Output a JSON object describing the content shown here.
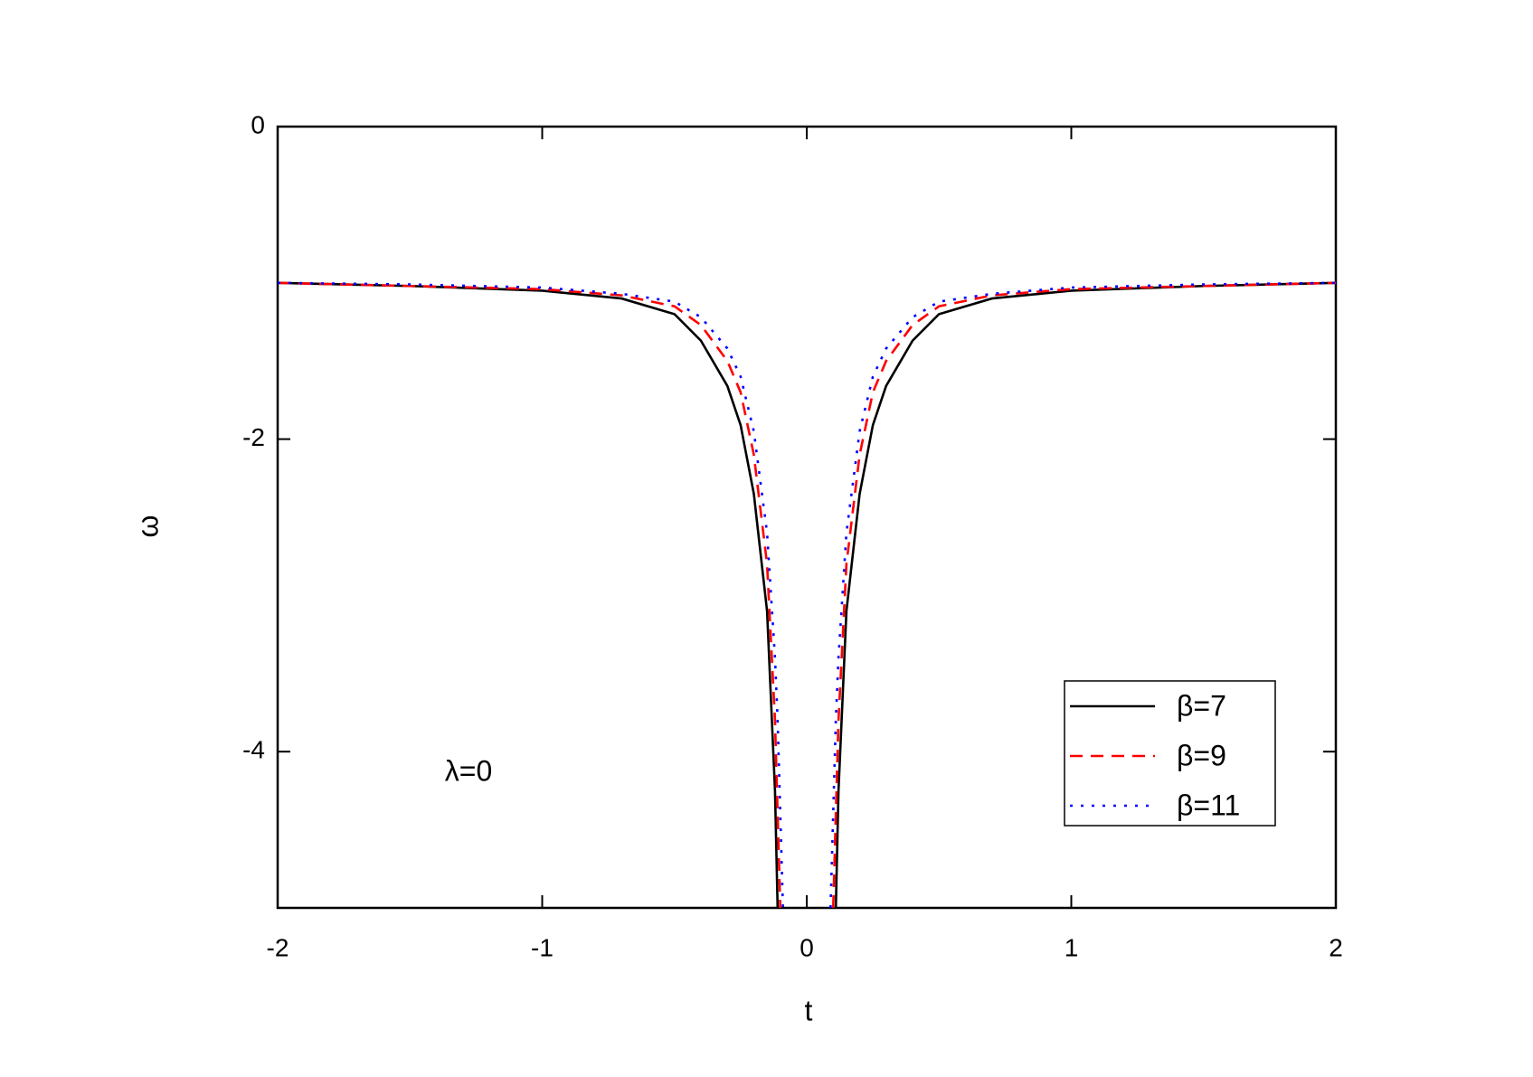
{
  "chart_data": {
    "type": "line",
    "x_label": "t",
    "y_label": "ω",
    "annotation": "λ=0",
    "xlim": [
      -2,
      2
    ],
    "ylim": [
      -5,
      0
    ],
    "xticks": [
      -2,
      -1,
      0,
      1,
      2
    ],
    "yticks": [
      0,
      -2,
      -4
    ],
    "legend": "lower right",
    "x": [
      -2,
      -1.5,
      -1,
      -0.7,
      -0.5,
      -0.4,
      -0.3,
      -0.25,
      -0.2,
      -0.15,
      -0.12,
      -0.11,
      -0.1,
      -0.09,
      0,
      0.09,
      0.1,
      0.11,
      0.12,
      0.15,
      0.2,
      0.25,
      0.3,
      0.4,
      0.5,
      0.7,
      1,
      1.5,
      2
    ],
    "series": [
      {
        "name": "β=7",
        "color": "#000000",
        "dash": "solid",
        "values": [
          -1.0,
          -1.02,
          -1.05,
          -1.1,
          -1.2,
          -1.37,
          -1.66,
          -1.91,
          -2.35,
          -3.1,
          -4.25,
          -5.0,
          null,
          null,
          null,
          null,
          null,
          -5.0,
          -4.25,
          -3.1,
          -2.35,
          -1.91,
          -1.66,
          -1.37,
          -1.2,
          -1.1,
          -1.05,
          -1.02,
          -1.0
        ]
      },
      {
        "name": "β=9",
        "color": "#ff0000",
        "dash": "dashed",
        "values": [
          -1.0,
          -1.02,
          -1.04,
          -1.08,
          -1.15,
          -1.27,
          -1.5,
          -1.7,
          -2.1,
          -2.8,
          -3.8,
          -4.4,
          -5.0,
          null,
          null,
          null,
          -5.0,
          -4.4,
          -3.8,
          -2.8,
          -2.1,
          -1.7,
          -1.5,
          -1.27,
          -1.15,
          -1.08,
          -1.04,
          -1.02,
          -1.0
        ]
      },
      {
        "name": "β=11",
        "color": "#0000ff",
        "dash": "dotted",
        "values": [
          -1.0,
          -1.01,
          -1.03,
          -1.07,
          -1.12,
          -1.22,
          -1.42,
          -1.6,
          -1.95,
          -2.6,
          -3.4,
          -3.8,
          -4.4,
          -5.0,
          null,
          -5.0,
          -4.4,
          -3.8,
          -3.4,
          -2.6,
          -1.95,
          -1.6,
          -1.42,
          -1.22,
          -1.12,
          -1.07,
          -1.03,
          -1.01,
          -1.0
        ]
      }
    ]
  }
}
